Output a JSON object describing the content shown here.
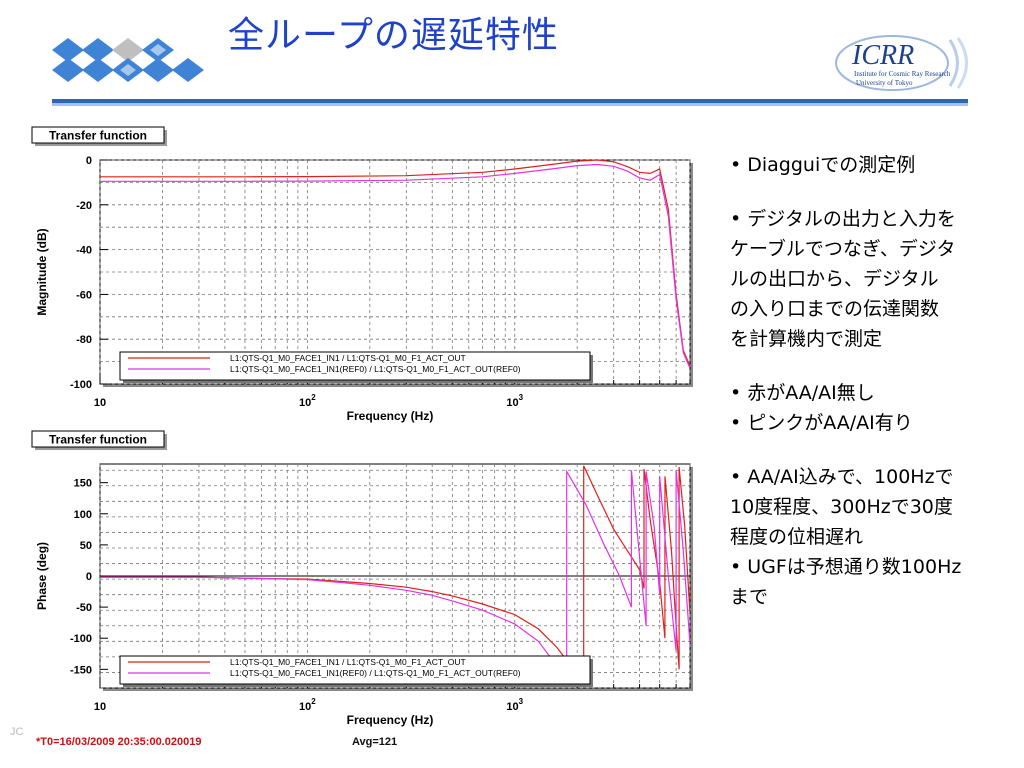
{
  "slide": {
    "title": "全ループの遅延特性",
    "footer_left": "JC",
    "footnote_t0": "*T0=16/03/2009 20:35:00.020019",
    "footnote_avg": "Avg=121"
  },
  "logo": {
    "icrr_text": "ICRR",
    "icrr_sub1": "Institute for Cosmic Ray Research",
    "icrr_sub2": "University of Tokyo"
  },
  "notes": [
    {
      "lines": [
        "Diagguiでの測定例"
      ]
    },
    {
      "lines": [
        "デジタルの出力と入力を",
        "ケーブルでつなぎ、デジタ",
        "ルの出口から、デジタル",
        "の入り口までの伝達関数",
        "を計算機内で測定"
      ]
    },
    {
      "lines": [
        "赤がAA/AI無し"
      ]
    },
    {
      "lines": [
        "ピンクがAA/AI有り"
      ]
    },
    {
      "lines": [
        "AA/AI込みで、100Hzで",
        "10度程度、300Hzで30度",
        "程度の位相遅れ"
      ]
    },
    {
      "lines": [
        "UGFは予想通り数100Hz",
        "まで"
      ]
    }
  ],
  "colors": {
    "red_series": "#e0201b",
    "pink_series": "#e432e6",
    "title_blue": "#1f43c8"
  },
  "chart_data": [
    {
      "type": "line",
      "panel_label": "Transfer function",
      "xlabel": "Frequency (Hz)",
      "ylabel": "Magnitude (dB)",
      "x_scale": "log",
      "xlim": [
        10,
        7000
      ],
      "ylim": [
        -100,
        0
      ],
      "y_ticks": [
        0,
        -20,
        -40,
        -60,
        -80,
        -100
      ],
      "x_tick_labels": [
        {
          "value": 10,
          "base": "10",
          "exp": ""
        },
        {
          "value": 100,
          "base": "10",
          "exp": "2"
        },
        {
          "value": 1000,
          "base": "10",
          "exp": "3"
        }
      ],
      "grid": true,
      "legend_position": "bottom-center",
      "series": [
        {
          "name": "L1:QTS-Q1_M0_FACE1_IN1 / L1:QTS-Q1_M0_F1_ACT_OUT",
          "color": "#e0201b",
          "x": [
            10,
            50,
            100,
            300,
            700,
            1000,
            1500,
            2000,
            2500,
            3000,
            3500,
            4000,
            4500,
            5000,
            5500,
            6000,
            6500,
            7000
          ],
          "y": [
            -7.5,
            -7.5,
            -7.4,
            -7,
            -5.5,
            -4,
            -2,
            -0.5,
            0,
            -0.8,
            -3,
            -5.5,
            -6,
            -4,
            -22,
            -60,
            -85,
            -92
          ]
        },
        {
          "name": "L1:QTS-Q1_M0_FACE1_IN1(REF0) / L1:QTS-Q1_M0_F1_ACT_OUT(REF0)",
          "color": "#e432e6",
          "x": [
            10,
            50,
            100,
            300,
            700,
            1000,
            1500,
            2000,
            2500,
            3000,
            3500,
            4000,
            4500,
            5000,
            5500,
            6000,
            6500,
            7000
          ],
          "y": [
            -9.5,
            -9.5,
            -9.4,
            -9,
            -7.5,
            -6,
            -4,
            -2.5,
            -2,
            -2.8,
            -5,
            -8,
            -9,
            -6.5,
            -25,
            -62,
            -86,
            -93
          ]
        }
      ]
    },
    {
      "type": "line",
      "panel_label": "Transfer function",
      "xlabel": "Frequency (Hz)",
      "ylabel": "Phase (deg)",
      "x_scale": "log",
      "xlim": [
        10,
        7000
      ],
      "ylim": [
        -180,
        180
      ],
      "y_ticks": [
        150,
        100,
        50,
        0,
        -50,
        -100,
        -150
      ],
      "x_tick_labels": [
        {
          "value": 10,
          "base": "10",
          "exp": ""
        },
        {
          "value": 100,
          "base": "10",
          "exp": "2"
        },
        {
          "value": 1000,
          "base": "10",
          "exp": "3"
        }
      ],
      "grid": true,
      "legend_position": "bottom-center",
      "series": [
        {
          "name": "L1:QTS-Q1_M0_FACE1_IN1 / L1:QTS-Q1_M0_F1_ACT_OUT",
          "color": "#e0201b",
          "x": [
            10,
            30,
            60,
            100,
            150,
            200,
            300,
            400,
            500,
            700,
            1000,
            1300,
            1600,
            1900,
            2150,
            2151,
            2500,
            3000,
            3500,
            4000,
            4200,
            4201,
            4500,
            5000,
            5300,
            5301,
            5700,
            6000,
            6200,
            6201,
            6600,
            7000
          ],
          "y": [
            -2,
            -2,
            -4,
            -5,
            -9,
            -12,
            -18,
            -25,
            -32,
            -45,
            -62,
            -85,
            -115,
            -148,
            -172,
            177,
            130,
            75,
            40,
            10,
            -20,
            172,
            90,
            -10,
            -100,
            160,
            40,
            -80,
            -150,
            175,
            80,
            -60
          ]
        },
        {
          "name": "L1:QTS-Q1_M0_FACE1_IN1(REF0) / L1:QTS-Q1_M0_F1_ACT_OUT(REF0)",
          "color": "#e432e6",
          "x": [
            10,
            30,
            60,
            100,
            150,
            200,
            300,
            400,
            500,
            700,
            1000,
            1300,
            1600,
            1780,
            1781,
            2200,
            2700,
            3200,
            3650,
            3651,
            4000,
            4300,
            4301,
            4700,
            5000,
            5001,
            5500,
            6000,
            6001,
            6500,
            7000
          ],
          "y": [
            -2,
            -2,
            -4,
            -6,
            -11,
            -15,
            -23,
            -31,
            -40,
            -55,
            -77,
            -105,
            -145,
            -178,
            168,
            115,
            50,
            0,
            -50,
            170,
            30,
            -80,
            168,
            80,
            -30,
            160,
            0,
            -120,
            170,
            40,
            -110
          ]
        }
      ]
    }
  ]
}
